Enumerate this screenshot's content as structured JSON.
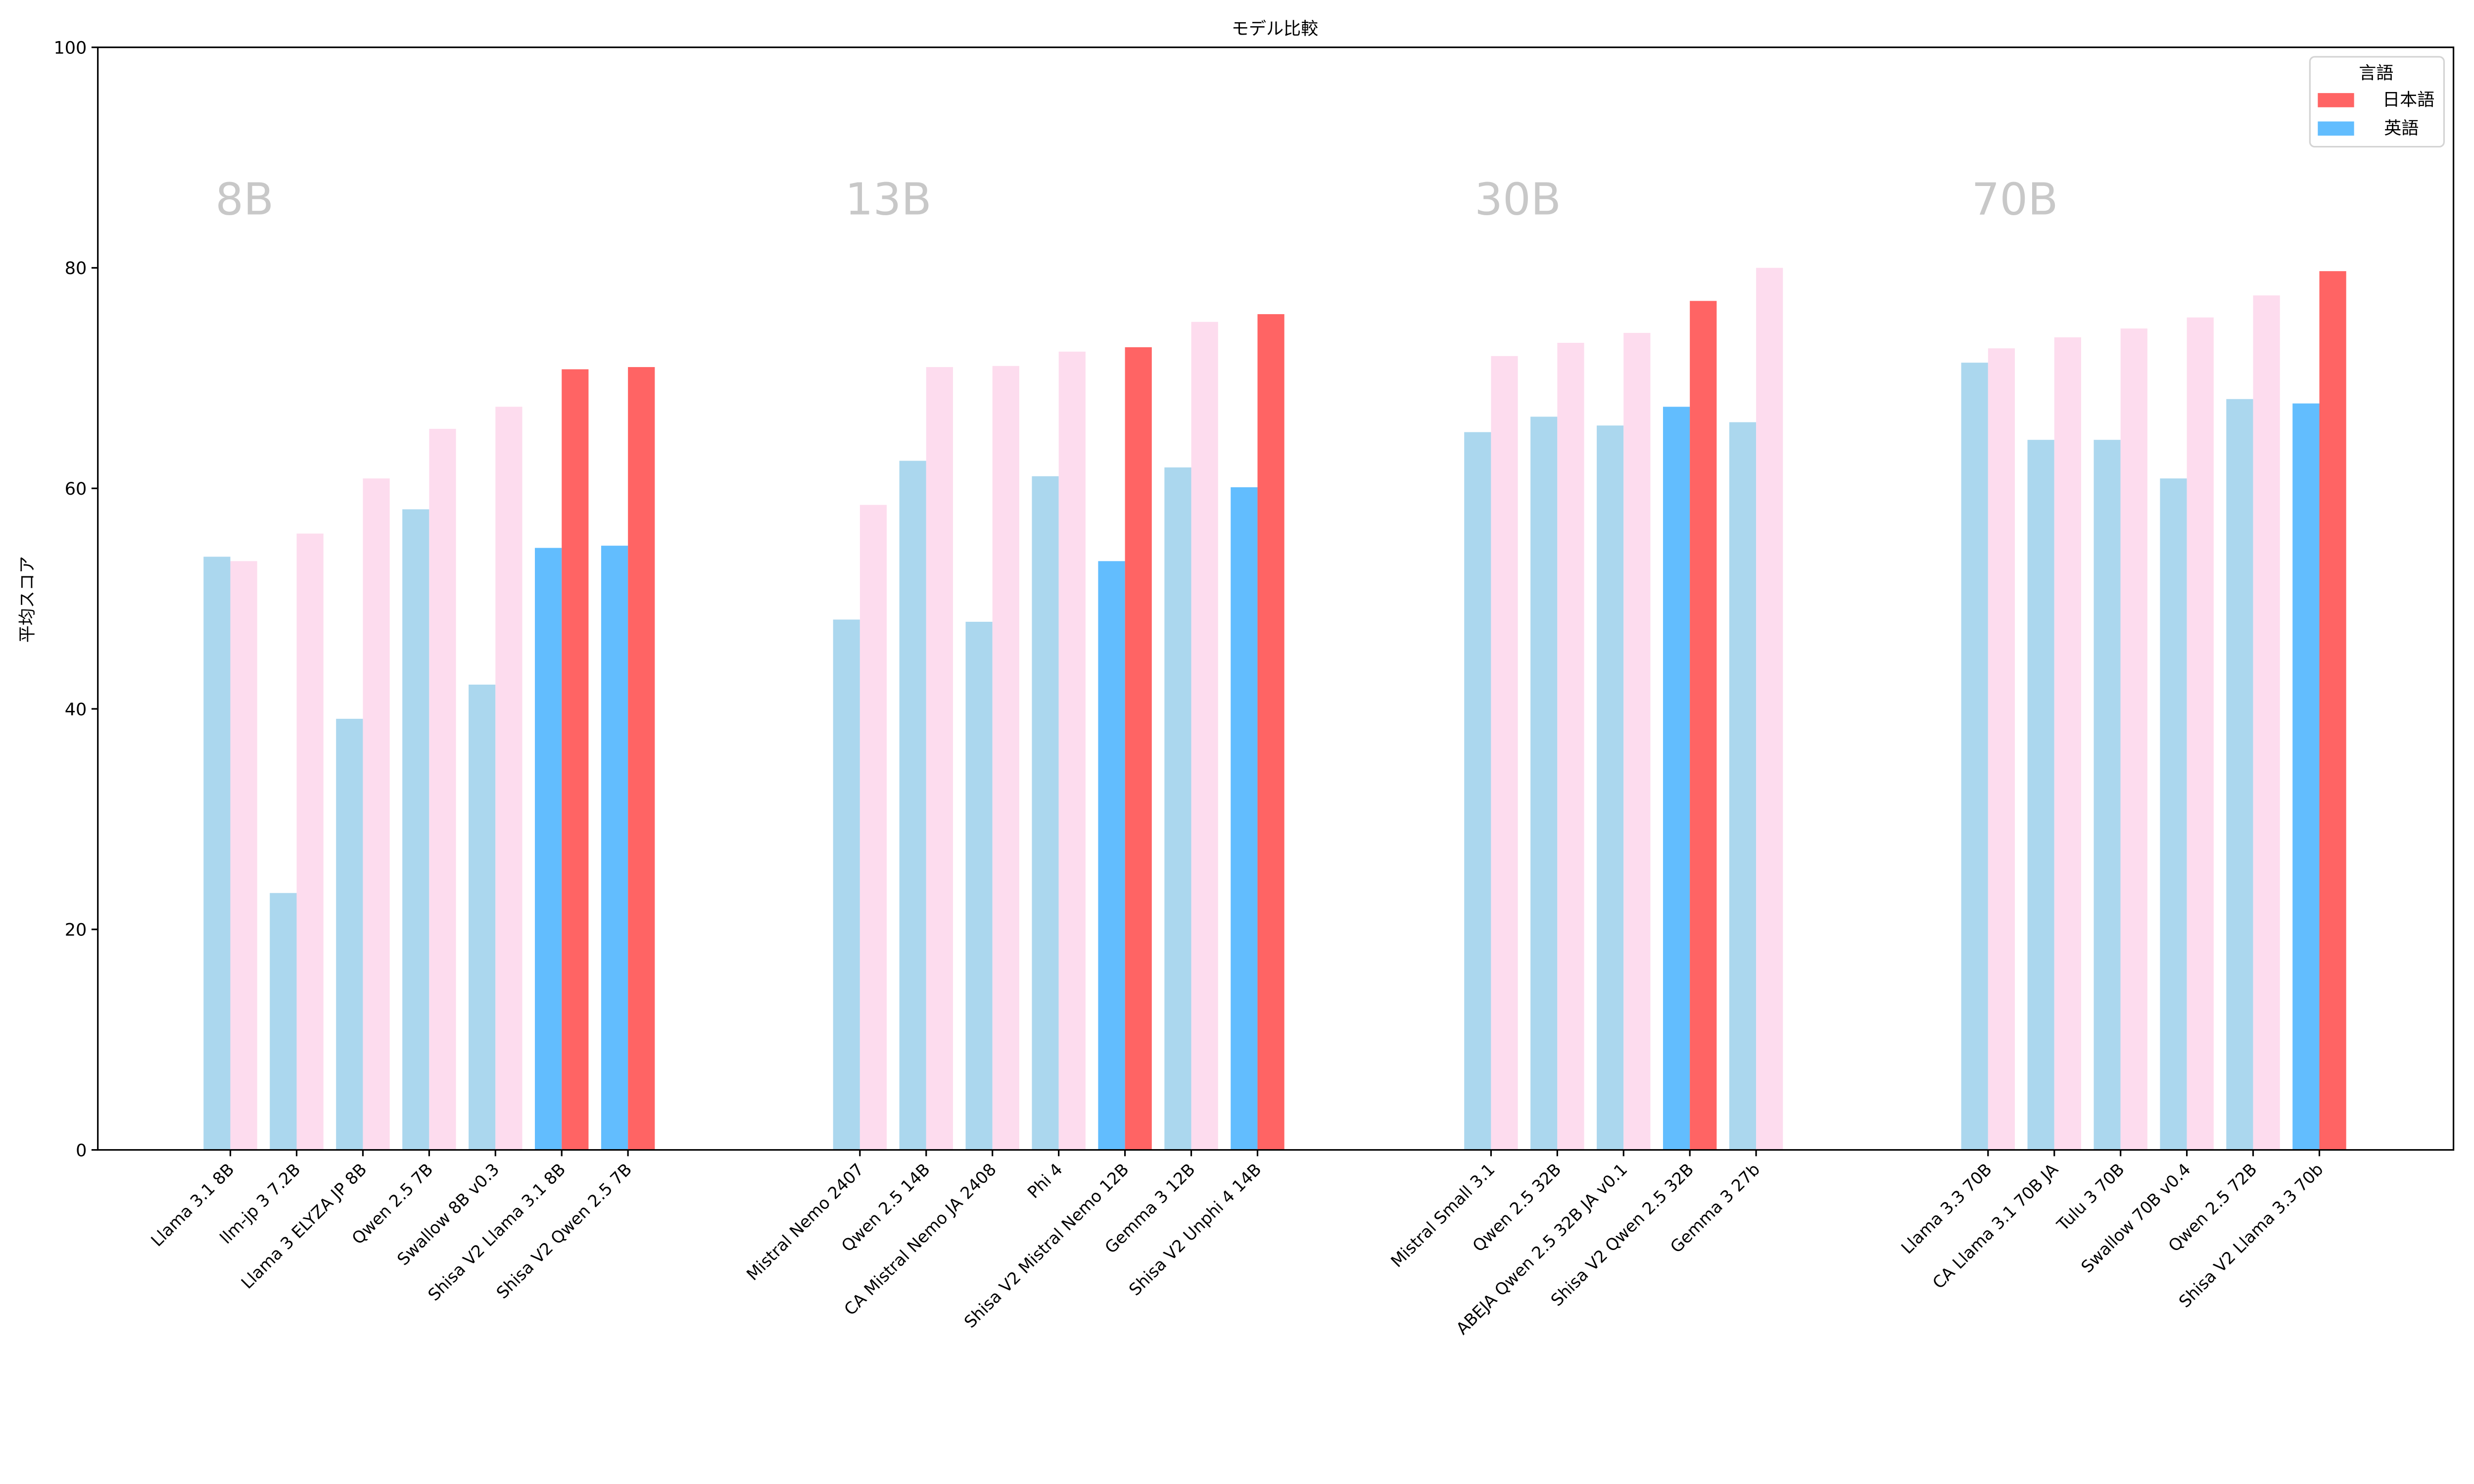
{
  "chart_data": {
    "type": "bar",
    "title": "モデル比較",
    "xlabel": "",
    "ylabel": "平均スコア",
    "ylim": [
      0,
      100
    ],
    "yticks": [
      "0",
      "20",
      "40",
      "60",
      "80",
      "100"
    ],
    "grid": false,
    "legend": {
      "title": "言語",
      "placement": "top-right",
      "entries": [
        {
          "label": "日本語",
          "color": "#FF6464"
        },
        {
          "label": "英語",
          "color": "#62BDFE"
        }
      ]
    },
    "colors": {
      "en_highlight": "#62BDFE",
      "ja_highlight": "#FF6464",
      "en_other": "#ABD7EE",
      "ja_other": "#FDDCEE",
      "group_label": "#C8C8C8"
    },
    "groups": [
      {
        "label": "8B",
        "models": [
          {
            "name": "Llama 3.1 8B",
            "en": 53.8,
            "ja": 53.4,
            "highlight": false
          },
          {
            "name": "llm-jp 3 7.2B",
            "en": 23.3,
            "ja": 55.9,
            "highlight": false
          },
          {
            "name": "Llama 3 ELYZA JP 8B",
            "en": 39.1,
            "ja": 60.9,
            "highlight": false
          },
          {
            "name": "Qwen 2.5 7B",
            "en": 58.1,
            "ja": 65.4,
            "highlight": false
          },
          {
            "name": "Swallow 8B v0.3",
            "en": 42.2,
            "ja": 67.4,
            "highlight": false
          },
          {
            "name": "Shisa V2 Llama 3.1 8B",
            "en": 54.6,
            "ja": 70.8,
            "highlight": true
          },
          {
            "name": "Shisa V2 Qwen 2.5 7B",
            "en": 54.8,
            "ja": 71.0,
            "highlight": true
          }
        ]
      },
      {
        "label": "13B",
        "models": [
          {
            "name": "Mistral Nemo 2407",
            "en": 48.1,
            "ja": 58.5,
            "highlight": false
          },
          {
            "name": "Qwen 2.5 14B",
            "en": 62.5,
            "ja": 71.0,
            "highlight": false
          },
          {
            "name": "CA Mistral Nemo JA 2408",
            "en": 47.9,
            "ja": 71.1,
            "highlight": false
          },
          {
            "name": "Phi 4",
            "en": 61.1,
            "ja": 72.4,
            "highlight": false
          },
          {
            "name": "Shisa V2 Mistral Nemo 12B",
            "en": 53.4,
            "ja": 72.8,
            "highlight": true
          },
          {
            "name": "Gemma 3 12B",
            "en": 61.9,
            "ja": 75.1,
            "highlight": false
          },
          {
            "name": "Shisa V2 Unphi 4 14B",
            "en": 60.1,
            "ja": 75.8,
            "highlight": true
          }
        ]
      },
      {
        "label": "30B",
        "models": [
          {
            "name": "Mistral Small 3.1",
            "en": 65.1,
            "ja": 72.0,
            "highlight": false
          },
          {
            "name": "Qwen 2.5 32B",
            "en": 66.5,
            "ja": 73.2,
            "highlight": false
          },
          {
            "name": "ABEJA Qwen 2.5 32B JA v0.1",
            "en": 65.7,
            "ja": 74.1,
            "highlight": false
          },
          {
            "name": "Shisa V2 Qwen 2.5 32B",
            "en": 67.4,
            "ja": 77.0,
            "highlight": true
          },
          {
            "name": "Gemma 3 27b",
            "en": 66.0,
            "ja": 80.0,
            "highlight": false
          }
        ]
      },
      {
        "label": "70B",
        "models": [
          {
            "name": "Llama 3.3 70B",
            "en": 71.4,
            "ja": 72.7,
            "highlight": false
          },
          {
            "name": "CA Llama 3.1 70B JA",
            "en": 64.4,
            "ja": 73.7,
            "highlight": false
          },
          {
            "name": "Tulu 3 70B",
            "en": 64.4,
            "ja": 74.5,
            "highlight": false
          },
          {
            "name": "Swallow 70B v0.4",
            "en": 60.9,
            "ja": 75.5,
            "highlight": false
          },
          {
            "name": "Qwen 2.5 72B",
            "en": 68.1,
            "ja": 77.5,
            "highlight": false
          },
          {
            "name": "Shisa V2 Llama 3.3 70b",
            "en": 67.7,
            "ja": 79.7,
            "highlight": true
          }
        ]
      }
    ]
  }
}
